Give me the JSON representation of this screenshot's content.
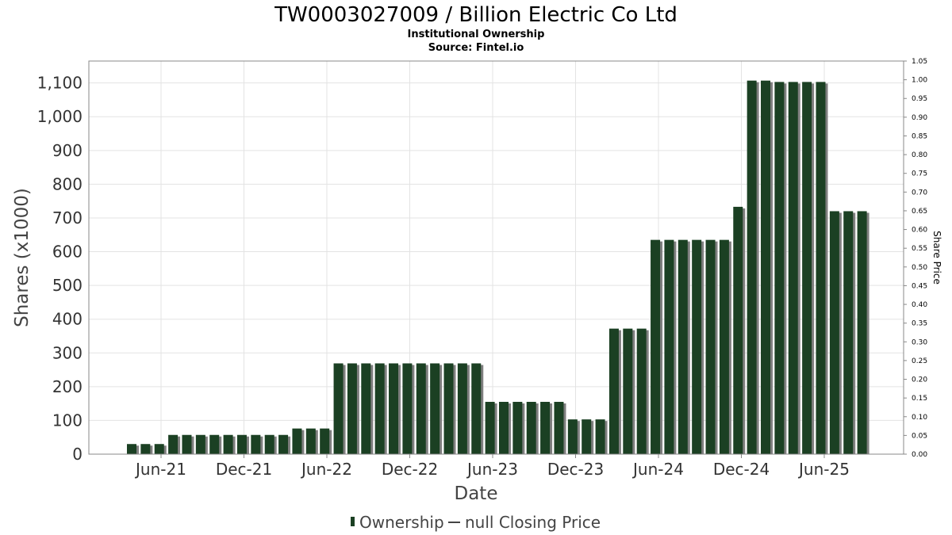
{
  "title": "TW0003027009 / Billion Electric Co Ltd",
  "subtitle": "Institutional Ownership",
  "source": "Source: Fintel.io",
  "colors": {
    "bar": "#1b4023",
    "bar_shadow": "#7f7f7f",
    "grid": "#e3e3e3",
    "frame": "#888888"
  },
  "chart_data": {
    "type": "bar",
    "xlabel": "Date",
    "ylabel": "Shares (x1000)",
    "y2label": "Share Price",
    "ylim": [
      0,
      1165
    ],
    "y2lim": [
      0,
      1.05
    ],
    "grid": true,
    "legend_position": "bottom",
    "x_tick_labels": [
      "Jun-21",
      "Dec-21",
      "Jun-22",
      "Dec-22",
      "Jun-23",
      "Dec-23",
      "Jun-24",
      "Dec-24",
      "Jun-25"
    ],
    "y_tick_labels": [
      "0",
      "100",
      "200",
      "300",
      "400",
      "500",
      "600",
      "700",
      "800",
      "900",
      "1,000",
      "1,100"
    ],
    "y2_tick_labels": [
      "0.00",
      "0.05",
      "0.10",
      "0.15",
      "0.20",
      "0.25",
      "0.30",
      "0.35",
      "0.40",
      "0.45",
      "0.50",
      "0.55",
      "0.60",
      "0.65",
      "0.70",
      "0.75",
      "0.80",
      "0.85",
      "0.90",
      "0.95",
      "1.00",
      "1.05"
    ],
    "series": [
      {
        "name": "Ownership",
        "values": [
          30,
          30,
          30,
          57,
          57,
          57,
          57,
          57,
          57,
          57,
          57,
          57,
          76,
          76,
          76,
          269,
          269,
          269,
          269,
          269,
          269,
          269,
          269,
          269,
          269,
          269,
          155,
          155,
          155,
          155,
          155,
          155,
          103,
          103,
          103,
          372,
          372,
          372,
          635,
          635,
          635,
          635,
          635,
          635,
          733,
          1107,
          1107,
          1103,
          1103,
          1103,
          1103,
          720,
          720,
          720
        ]
      },
      {
        "name": "null Closing Price",
        "values": []
      }
    ]
  },
  "legend": {
    "ownership_label": "Ownership",
    "price_label": "null Closing Price"
  }
}
